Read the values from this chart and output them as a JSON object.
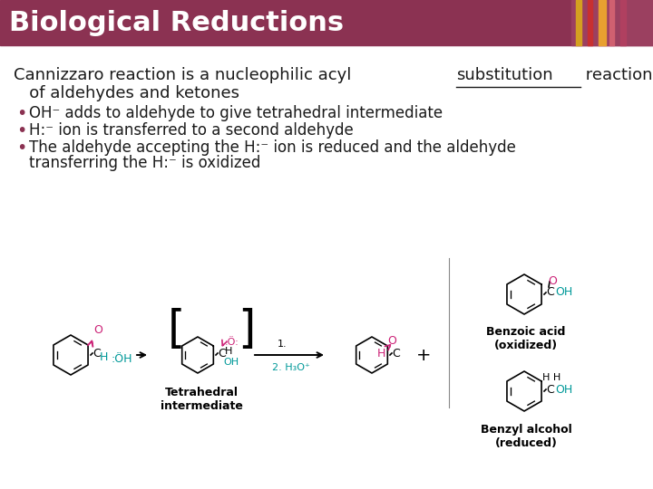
{
  "title": "Biological Reductions",
  "title_bg_color": "#8B3252",
  "title_text_color": "#FFFFFF",
  "title_fontsize": 22,
  "body_bg_color": "#FFFFFF",
  "main_text_color": "#1a1a1a",
  "bullet_color": "#8B3252",
  "bullet1": "OH⁻ adds to aldehyde to give tetrahedral intermediate",
  "bullet2": "H:⁻ ion is transferred to a second aldehyde",
  "bullet3": "The aldehyde accepting the H:⁻ ion is reduced and the aldehyde",
  "bullet3b": "transferring the H:⁻ is oxidized",
  "benzoic_label": "Benzoic acid\n(oxidized)",
  "benzyl_label": "Benzyl alcohol\n(reduced)",
  "tetrahedral_label": "Tetrahedral\nintermediate",
  "label_fontsize": 9,
  "text_fontsize": 13,
  "bullet_fontsize": 12,
  "cyan_color": "#009999",
  "pink_color": "#CC2277",
  "flower_colors": [
    "#D4A020",
    "#C83030",
    "#E8A030",
    "#D06070",
    "#B04060"
  ]
}
